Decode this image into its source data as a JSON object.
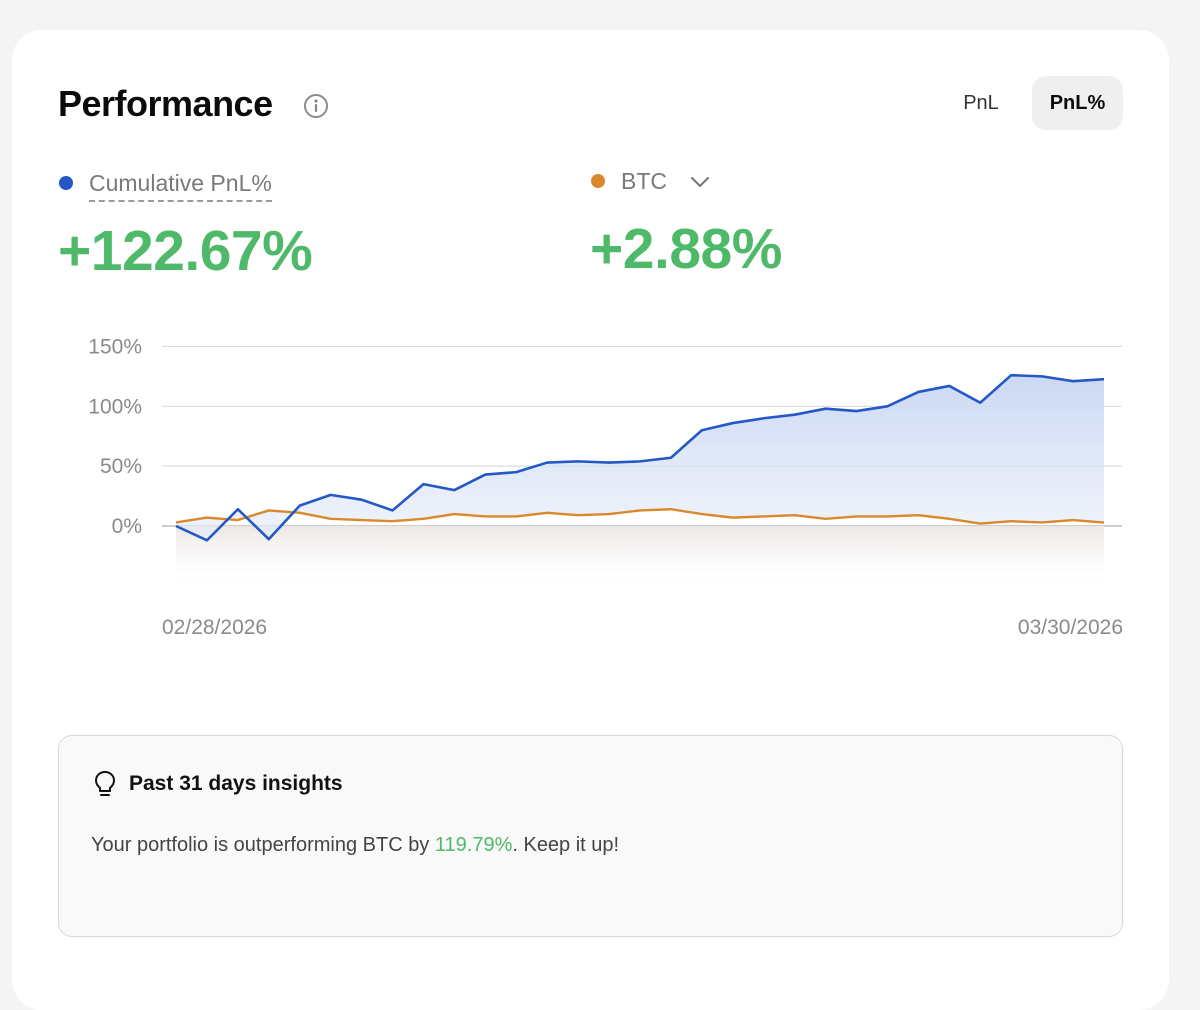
{
  "header": {
    "title": "Performance",
    "info_icon": "info-circle-icon"
  },
  "toggle": {
    "options": [
      "PnL",
      "PnL%"
    ],
    "selected": "PnL%"
  },
  "legend": {
    "cumulative": {
      "label": "Cumulative PnL%",
      "value": "+122.67%",
      "color": "#2358c6"
    },
    "benchmark": {
      "label": "BTC",
      "value": "+2.88%",
      "color": "#d9892c",
      "dropdown_icon": "chevron-down-icon"
    }
  },
  "value_color": "#4fb96a",
  "chart_data": {
    "type": "area",
    "x_start_label": "02/28/2026",
    "x_end_label": "03/30/2026",
    "y_ticks": [
      "150%",
      "100%",
      "50%",
      "0%"
    ],
    "ylim": [
      -55,
      150
    ],
    "x": [
      0,
      1,
      2,
      3,
      4,
      5,
      6,
      7,
      8,
      9,
      10,
      11,
      12,
      13,
      14,
      15,
      16,
      17,
      18,
      19,
      20,
      21,
      22,
      23,
      24,
      25,
      26,
      27,
      28,
      29,
      30
    ],
    "grid": true,
    "series": [
      {
        "key": "portfolio",
        "color": "#2358c6",
        "values": [
          0,
          -12,
          14,
          -11,
          17,
          26,
          22,
          13,
          35,
          30,
          43,
          45,
          53,
          54,
          53,
          54,
          57,
          80,
          86,
          90,
          93,
          98,
          96,
          100,
          112,
          117,
          103,
          126,
          125,
          121,
          122.67
        ]
      },
      {
        "key": "btc",
        "color": "#d9892c",
        "values": [
          3,
          7,
          5,
          13,
          11,
          6,
          5,
          4,
          6,
          10,
          8,
          8,
          11,
          9,
          10,
          13,
          14,
          10,
          7,
          8,
          9,
          6,
          8,
          8,
          9,
          6,
          2,
          4,
          3,
          5,
          2.88
        ]
      }
    ]
  },
  "insights": {
    "icon": "lightbulb-icon",
    "title": "Past 31 days insights",
    "text_before": "Your portfolio is outperforming BTC by ",
    "highlight": "119.79%",
    "text_after": ". Keep it up!"
  }
}
